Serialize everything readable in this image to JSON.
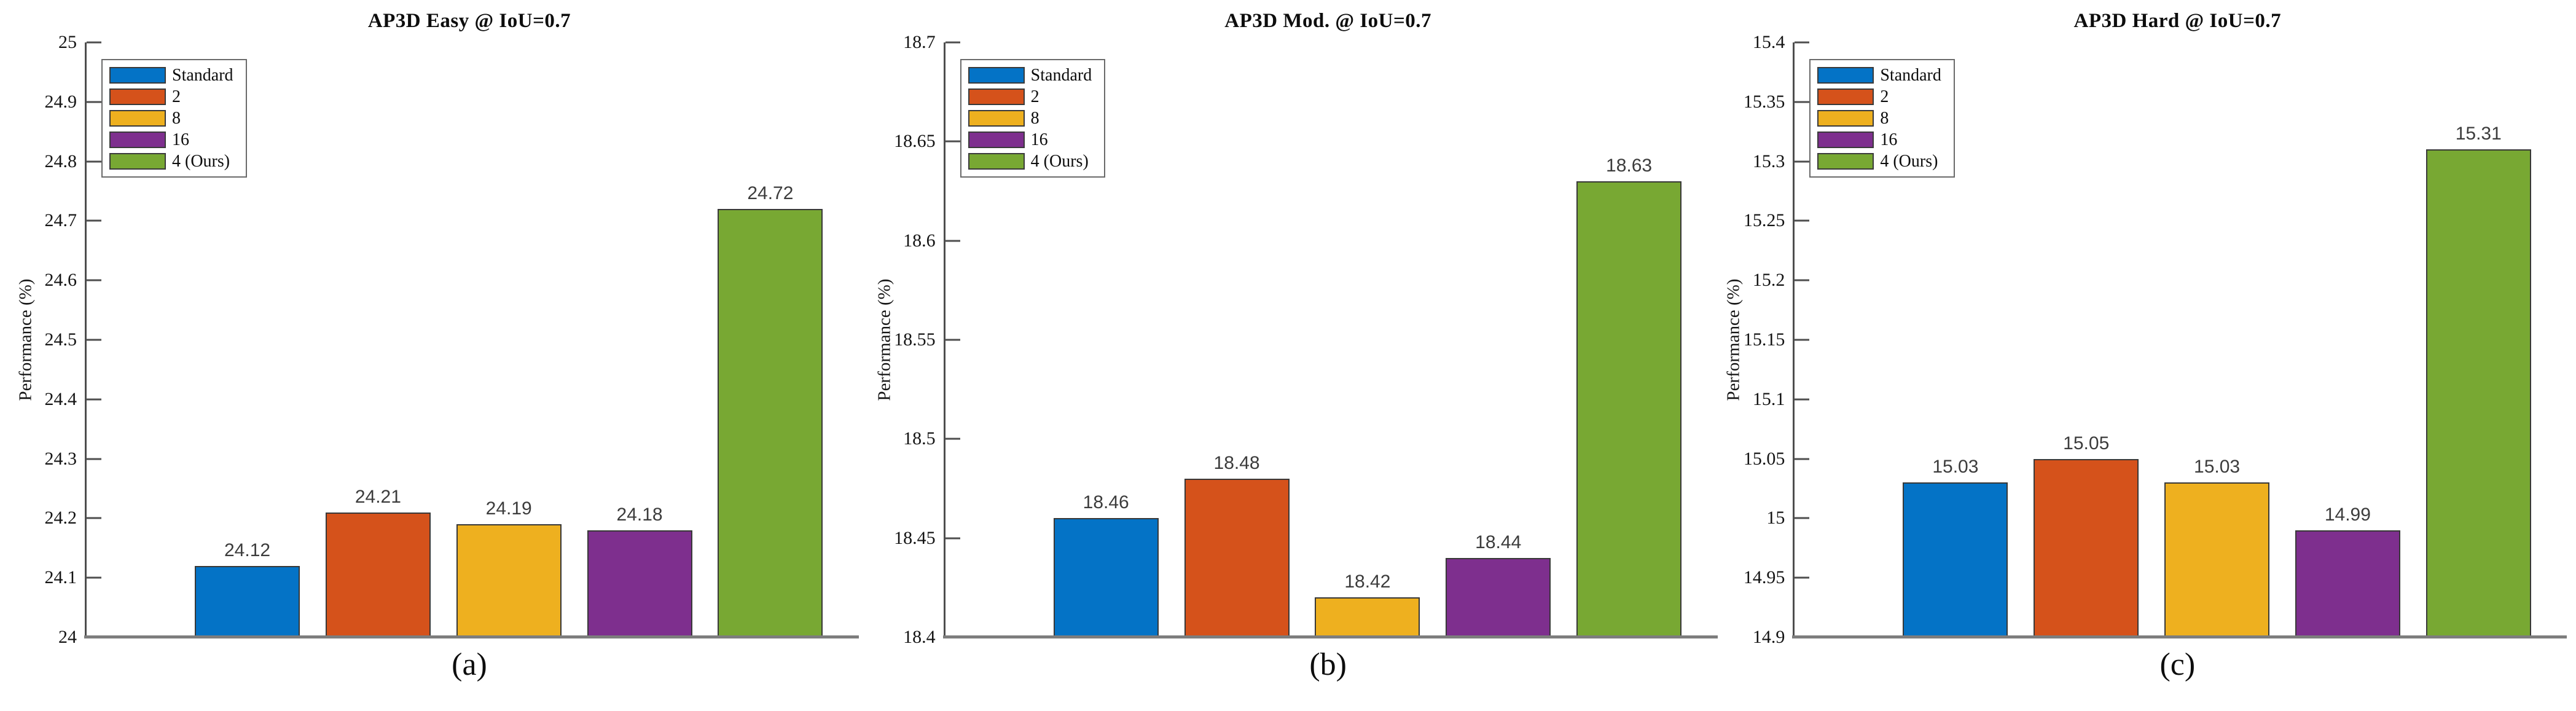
{
  "figure": {
    "ylabel": "Performance (%)",
    "series": [
      {
        "name": "Standard",
        "color": "#0473c6"
      },
      {
        "name": "2",
        "color": "#d5521b"
      },
      {
        "name": "8",
        "color": "#eeb01f"
      },
      {
        "name": "16",
        "color": "#7e2f8e"
      },
      {
        "name": "4 (Ours)",
        "color": "#78a833"
      }
    ],
    "axis_color": "#4e4e4e",
    "baseline_color": "#7d7d7d"
  },
  "chart_data": [
    {
      "type": "bar",
      "title": "AP3D Easy @ IoU=0.7",
      "caption": "(a)",
      "ylabel": "Performance (%)",
      "categories": [
        "Standard",
        "2",
        "8",
        "16",
        "4 (Ours)"
      ],
      "values": [
        24.12,
        24.21,
        24.19,
        24.18,
        24.72
      ],
      "value_labels": [
        "24.12",
        "24.21",
        "24.19",
        "24.18",
        "24.72"
      ],
      "ylim": [
        24,
        25
      ],
      "yticks": [
        "24",
        "24.1",
        "24.2",
        "24.3",
        "24.4",
        "24.5",
        "24.6",
        "24.7",
        "24.8",
        "24.9",
        "25"
      ],
      "grid": false,
      "legend_position": "upper left"
    },
    {
      "type": "bar",
      "title": "AP3D Mod. @ IoU=0.7",
      "caption": "(b)",
      "ylabel": "Performance (%)",
      "categories": [
        "Standard",
        "2",
        "8",
        "16",
        "4 (Ours)"
      ],
      "values": [
        18.46,
        18.48,
        18.42,
        18.44,
        18.63
      ],
      "value_labels": [
        "18.46",
        "18.48",
        "18.42",
        "18.44",
        "18.63"
      ],
      "ylim": [
        18.4,
        18.7
      ],
      "yticks": [
        "18.4",
        "18.45",
        "18.5",
        "18.55",
        "18.6",
        "18.65",
        "18.7"
      ],
      "grid": false,
      "legend_position": "upper left"
    },
    {
      "type": "bar",
      "title": "AP3D Hard @ IoU=0.7",
      "caption": "(c)",
      "ylabel": "Performance (%)",
      "categories": [
        "Standard",
        "2",
        "8",
        "16",
        "4 (Ours)"
      ],
      "values": [
        15.03,
        15.05,
        15.03,
        14.99,
        15.31
      ],
      "value_labels": [
        "15.03",
        "15.05",
        "15.03",
        "14.99",
        "15.31"
      ],
      "ylim": [
        14.9,
        15.4
      ],
      "yticks": [
        "14.9",
        "14.95",
        "15",
        "15.05",
        "15.1",
        "15.15",
        "15.2",
        "15.25",
        "15.3",
        "15.35",
        "15.4"
      ],
      "grid": false,
      "legend_position": "upper left"
    }
  ]
}
